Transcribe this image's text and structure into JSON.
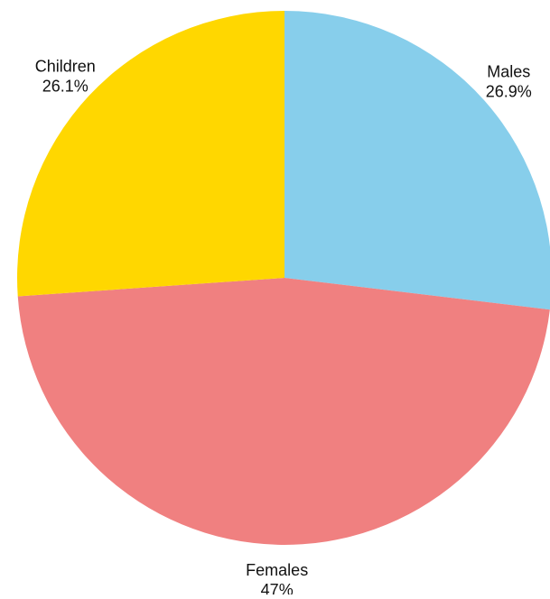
{
  "chart_data": {
    "type": "pie",
    "title": "",
    "slices": [
      {
        "label": "Males",
        "value": 26.9,
        "value_label": "26.9%",
        "color": "#87CEEB"
      },
      {
        "label": "Females",
        "value": 47,
        "value_label": "47%",
        "color": "#F08080"
      },
      {
        "label": "Children",
        "value": 26.1,
        "value_label": "26.1%",
        "color": "#FFD700"
      }
    ],
    "start_angle": "12 o'clock",
    "direction": "clockwise",
    "legend": "none"
  }
}
